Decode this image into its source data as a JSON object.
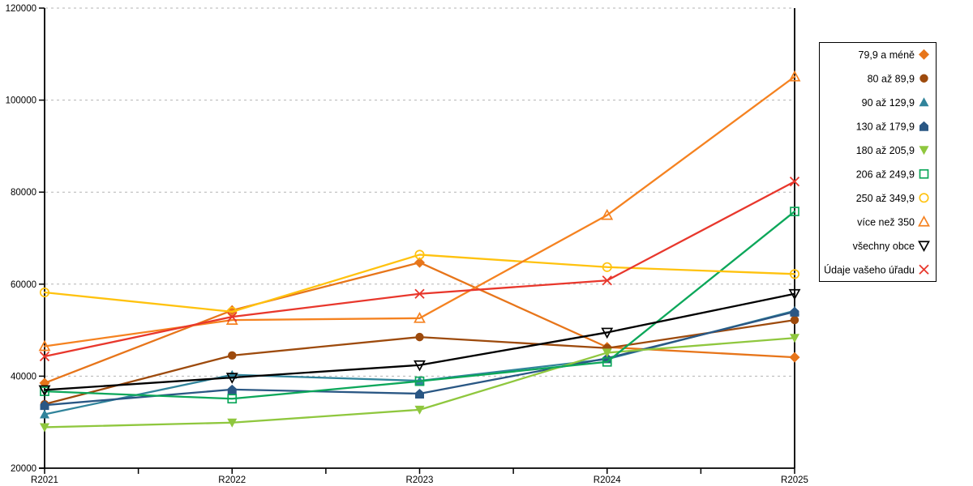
{
  "chart_data": {
    "type": "line",
    "title": "",
    "xlabel": "",
    "ylabel": "",
    "categories": [
      "R2021",
      "R2022",
      "R2023",
      "R2024",
      "R2025"
    ],
    "ylim": [
      20000,
      120000
    ],
    "ytick_step": 20000,
    "ytick_labels": [
      "20000",
      "40000",
      "60000",
      "80000",
      "100000",
      "120000"
    ],
    "grid": "horizontal-dashed",
    "grid_color": "#b3b3b3",
    "axis_color": "#000000",
    "legend_position": "right-box",
    "series": [
      {
        "name": "79,9 a méně",
        "marker": "diamond",
        "fill": "solid",
        "color": "#e7751a",
        "values": [
          38500,
          54300,
          64700,
          46300,
          44100
        ]
      },
      {
        "name": "80 až 89,9",
        "marker": "circle",
        "fill": "solid",
        "color": "#9d4a0c",
        "values": [
          33900,
          44500,
          48500,
          46100,
          52200
        ]
      },
      {
        "name": "90 až 129,9",
        "marker": "triangle-up",
        "fill": "solid",
        "color": "#31849b",
        "values": [
          31700,
          40300,
          39000,
          43700,
          54200
        ]
      },
      {
        "name": "130 až 179,9",
        "marker": "pentagon",
        "fill": "solid",
        "color": "#2a5784",
        "values": [
          33700,
          37100,
          36200,
          43900,
          54000
        ]
      },
      {
        "name": "180 až 205,9",
        "marker": "triangle-down",
        "fill": "solid",
        "color": "#8fc73e",
        "values": [
          28900,
          29900,
          32700,
          45100,
          48300
        ]
      },
      {
        "name": "206 až 249,9",
        "marker": "square",
        "fill": "open",
        "color": "#0ca75a",
        "values": [
          36700,
          35100,
          38900,
          43100,
          75800
        ]
      },
      {
        "name": "250 až 349,9",
        "marker": "circle",
        "fill": "open",
        "color": "#ffc20e",
        "values": [
          58200,
          54000,
          66400,
          63700,
          62200
        ]
      },
      {
        "name": "více než 350",
        "marker": "triangle-up",
        "fill": "open",
        "color": "#f58220",
        "values": [
          46500,
          52200,
          52600,
          75000,
          105100
        ]
      },
      {
        "name": "všechny obce",
        "marker": "triangle-down",
        "fill": "open",
        "color": "#000000",
        "values": [
          37000,
          39700,
          42400,
          49500,
          57900
        ]
      },
      {
        "name": "Údaje vašeho úřadu",
        "marker": "x",
        "fill": "open",
        "color": "#e8372c",
        "values": [
          44300,
          52900,
          57900,
          60800,
          82300
        ]
      }
    ]
  }
}
